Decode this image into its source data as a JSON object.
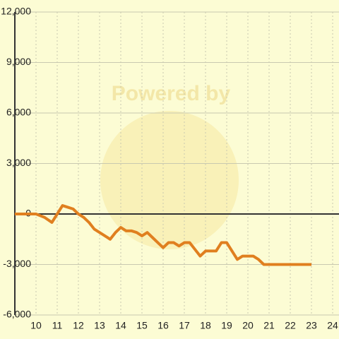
{
  "chart_data": {
    "type": "line",
    "watermark": "Powered by",
    "x": [
      9,
      10,
      10.4,
      10.75,
      11.25,
      11.5,
      11.75,
      12,
      12.25,
      12.5,
      12.75,
      13,
      13.25,
      13.5,
      13.75,
      14,
      14.25,
      14.5,
      14.75,
      15,
      15.25,
      15.5,
      15.75,
      16,
      16.25,
      16.5,
      16.75,
      17,
      17.25,
      17.5,
      17.75,
      18,
      18.25,
      18.5,
      18.75,
      19,
      19.25,
      19.5,
      19.75,
      20,
      20.25,
      20.5,
      20.75,
      21,
      21.5,
      22,
      22.5,
      23
    ],
    "series": [
      {
        "color": "#e07f1f",
        "values": [
          0,
          0,
          -200,
          -500,
          500,
          400,
          300,
          0,
          -200,
          -500,
          -900,
          -1100,
          -1300,
          -1500,
          -1100,
          -800,
          -1000,
          -1000,
          -1100,
          -1300,
          -1100,
          -1400,
          -1700,
          -2000,
          -1700,
          -1700,
          -1900,
          -1700,
          -1700,
          -2100,
          -2500,
          -2200,
          -2200,
          -2200,
          -1700,
          -1700,
          -2200,
          -2700,
          -2500,
          -2500,
          -2500,
          -2700,
          -3000,
          -3000,
          -3000,
          -3000,
          -3000,
          -3000
        ]
      }
    ],
    "xlim": [
      9,
      24.3
    ],
    "xticks": [
      10,
      11,
      12,
      13,
      14,
      15,
      16,
      17,
      18,
      19,
      20,
      21,
      22,
      23,
      24
    ],
    "ylim": [
      -6000,
      12000
    ],
    "yticks": [
      {
        "value": -6000,
        "label": "-6,000"
      },
      {
        "value": -3000,
        "label": "-3,000"
      },
      0,
      {
        "value": 3000,
        "label": "3,000"
      },
      {
        "value": 6000,
        "label": "6,000"
      },
      {
        "value": 9000,
        "label": "9,000"
      },
      {
        "value": 12000,
        "label": "12,000"
      }
    ],
    "grid": true
  }
}
